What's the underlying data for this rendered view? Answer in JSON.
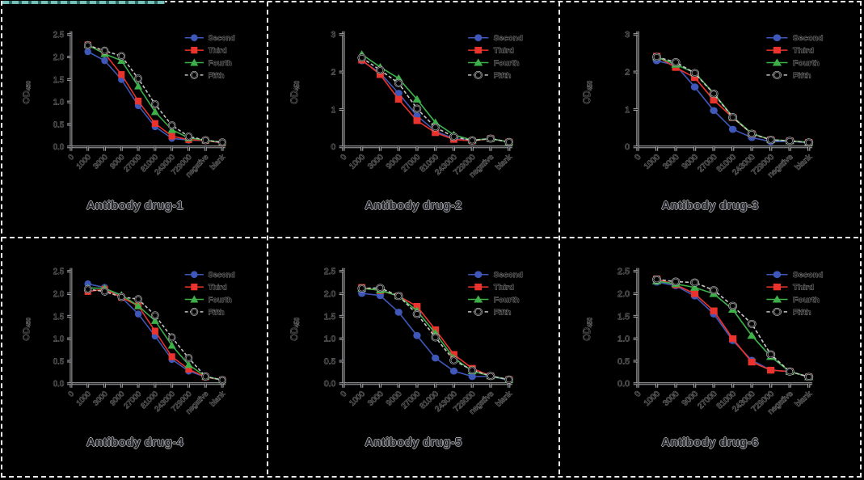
{
  "palette": {
    "background": "#000000",
    "border_dash": "#e9e9e9",
    "teal_highlight": "#74bfb7",
    "axis_core": "#191b20",
    "axis_halo": "#b3b3b3"
  },
  "series_defs": [
    {
      "name": "Second",
      "marker": "circle",
      "color": "#3e57b8",
      "line": "solid"
    },
    {
      "name": "Third",
      "marker": "square",
      "color": "#ea332c",
      "line": "solid"
    },
    {
      "name": "Fourth",
      "marker": "triangle",
      "color": "#3db04a",
      "line": "solid"
    },
    {
      "name": "Fifth",
      "marker": "circle-open",
      "color": "#c4c4c4",
      "line": "dashed"
    }
  ],
  "chart_data": [
    {
      "type": "line",
      "title": "Antibody drug-1",
      "ylabel": "OD",
      "ylabel_sub": "450",
      "ylim": [
        0,
        2.5
      ],
      "yticks": [
        "0.0",
        "0.5",
        "1.0",
        "1.5",
        "2.0",
        "2.5"
      ],
      "x_tick_labels": [
        "0",
        "1000",
        "3000",
        "9000",
        "27000",
        "81000",
        "243000",
        "729000",
        "negative",
        "blank"
      ],
      "categories": [
        "1000",
        "3000",
        "9000",
        "27000",
        "81000",
        "243000",
        "729000",
        "negative",
        "blank"
      ],
      "legend_position": "top-right",
      "grid": false,
      "series": [
        {
          "name": "Second",
          "values": [
            2.12,
            1.92,
            1.5,
            0.92,
            0.45,
            0.19,
            0.15,
            0.14,
            0.09
          ]
        },
        {
          "name": "Third",
          "values": [
            2.27,
            2.08,
            1.61,
            1.02,
            0.52,
            0.24,
            0.16,
            0.14,
            0.09
          ]
        },
        {
          "name": "Fourth",
          "values": [
            2.27,
            2.07,
            1.92,
            1.35,
            0.78,
            0.38,
            0.2,
            0.15,
            0.1
          ]
        },
        {
          "name": "Fifth",
          "values": [
            2.26,
            2.14,
            2.02,
            1.52,
            0.95,
            0.48,
            0.23,
            0.15,
            0.1
          ]
        }
      ]
    },
    {
      "type": "line",
      "title": "Antibody drug-2",
      "ylabel": "OD",
      "ylabel_sub": "450",
      "ylim": [
        0,
        3
      ],
      "yticks": [
        "0",
        "1",
        "2",
        "3"
      ],
      "x_tick_labels": [
        "0",
        "1000",
        "3000",
        "9000",
        "27000",
        "81000",
        "243000",
        "729000",
        "negative",
        "blank"
      ],
      "categories": [
        "1000",
        "3000",
        "9000",
        "27000",
        "81000",
        "243000",
        "729000",
        "negative",
        "blank"
      ],
      "legend_position": "top-right",
      "grid": false,
      "series": [
        {
          "name": "Second",
          "values": [
            2.3,
            1.97,
            1.43,
            0.83,
            0.42,
            0.22,
            0.17,
            0.22,
            0.13
          ]
        },
        {
          "name": "Third",
          "values": [
            2.32,
            1.93,
            1.27,
            0.7,
            0.38,
            0.2,
            0.16,
            0.22,
            0.13
          ]
        },
        {
          "name": "Fourth",
          "values": [
            2.47,
            2.13,
            1.83,
            1.27,
            0.65,
            0.32,
            0.18,
            0.22,
            0.13
          ]
        },
        {
          "name": "Fifth",
          "values": [
            2.38,
            2.05,
            1.7,
            1.02,
            0.52,
            0.27,
            0.17,
            0.22,
            0.13
          ]
        }
      ]
    },
    {
      "type": "line",
      "title": "Antibody drug-3",
      "ylabel": "OD",
      "ylabel_sub": "450",
      "ylim": [
        0,
        3
      ],
      "yticks": [
        "0",
        "1",
        "2",
        "3"
      ],
      "x_tick_labels": [
        "0",
        "1000",
        "3000",
        "9000",
        "27000",
        "81000",
        "243000",
        "729000",
        "negative",
        "blank"
      ],
      "categories": [
        "1000",
        "3000",
        "9000",
        "27000",
        "81000",
        "243000",
        "729000",
        "negative",
        "blank"
      ],
      "legend_position": "top-right",
      "grid": false,
      "series": [
        {
          "name": "Second",
          "values": [
            2.3,
            2.18,
            1.6,
            0.97,
            0.47,
            0.25,
            0.14,
            0.15,
            0.11
          ]
        },
        {
          "name": "Third",
          "values": [
            2.42,
            2.12,
            1.85,
            1.25,
            0.78,
            0.35,
            0.19,
            0.16,
            0.12
          ]
        },
        {
          "name": "Fourth",
          "values": [
            2.4,
            2.2,
            1.98,
            1.43,
            0.8,
            0.36,
            0.19,
            0.16,
            0.12
          ]
        },
        {
          "name": "Fifth",
          "values": [
            2.4,
            2.26,
            1.97,
            1.42,
            0.79,
            0.35,
            0.19,
            0.16,
            0.12
          ]
        }
      ]
    },
    {
      "type": "line",
      "title": "Antibody drug-4",
      "ylabel": "OD",
      "ylabel_sub": "450",
      "ylim": [
        0,
        2.5
      ],
      "yticks": [
        "0.0",
        "0.5",
        "1.0",
        "1.5",
        "2.0",
        "2.5"
      ],
      "x_tick_labels": [
        "0",
        "1000",
        "3000",
        "9000",
        "27000",
        "81000",
        "243000",
        "729000",
        "negative",
        "blank"
      ],
      "categories": [
        "1000",
        "3000",
        "9000",
        "27000",
        "81000",
        "243000",
        "729000",
        "negative",
        "blank"
      ],
      "legend_position": "top-right",
      "grid": false,
      "series": [
        {
          "name": "Second",
          "values": [
            2.22,
            2.14,
            1.92,
            1.55,
            1.06,
            0.54,
            0.28,
            0.15,
            0.08
          ]
        },
        {
          "name": "Third",
          "values": [
            2.05,
            2.1,
            1.92,
            1.73,
            1.17,
            0.6,
            0.32,
            0.15,
            0.08
          ]
        },
        {
          "name": "Fourth",
          "values": [
            2.13,
            2.12,
            1.97,
            1.73,
            1.4,
            0.85,
            0.42,
            0.16,
            0.08
          ]
        },
        {
          "name": "Fifth",
          "values": [
            2.1,
            2.05,
            1.93,
            1.88,
            1.52,
            1.03,
            0.57,
            0.16,
            0.08
          ]
        }
      ]
    },
    {
      "type": "line",
      "title": "Antibody drug-5",
      "ylabel": "OD",
      "ylabel_sub": "450",
      "ylim": [
        0,
        2.5
      ],
      "yticks": [
        "0.0",
        "0.5",
        "1.0",
        "1.5",
        "2.0",
        "2.5"
      ],
      "x_tick_labels": [
        "0",
        "1000",
        "3000",
        "9000",
        "27000",
        "81000",
        "243000",
        "729000",
        "negative",
        "blank"
      ],
      "categories": [
        "1000",
        "3000",
        "9000",
        "27000",
        "81000",
        "243000",
        "729000",
        "negative",
        "blank"
      ],
      "legend_position": "top-right",
      "grid": false,
      "series": [
        {
          "name": "Second",
          "values": [
            2.01,
            1.96,
            1.59,
            1.07,
            0.57,
            0.28,
            0.16,
            0.16,
            0.08
          ]
        },
        {
          "name": "Third",
          "values": [
            2.14,
            2.07,
            1.95,
            1.72,
            1.2,
            0.65,
            0.34,
            0.17,
            0.09
          ]
        },
        {
          "name": "Fourth",
          "values": [
            2.12,
            2.08,
            1.95,
            1.62,
            1.12,
            0.57,
            0.28,
            0.17,
            0.09
          ]
        },
        {
          "name": "Fifth",
          "values": [
            2.12,
            2.13,
            1.95,
            1.55,
            1.03,
            0.52,
            0.3,
            0.17,
            0.09
          ]
        }
      ]
    },
    {
      "type": "line",
      "title": "Antibody drug-6",
      "ylabel": "OD",
      "ylabel_sub": "450",
      "ylim": [
        0,
        2.5
      ],
      "yticks": [
        "0.0",
        "0.5",
        "1.0",
        "1.5",
        "2.0",
        "2.5"
      ],
      "x_tick_labels": [
        "0",
        "1000",
        "3000",
        "9000",
        "27000",
        "81000",
        "243000",
        "729000",
        "negative",
        "blank"
      ],
      "categories": [
        "1000",
        "3000",
        "9000",
        "27000",
        "81000",
        "243000",
        "729000",
        "negative",
        "blank"
      ],
      "legend_position": "top-right",
      "grid": false,
      "series": [
        {
          "name": "Second",
          "values": [
            2.26,
            2.18,
            1.95,
            1.55,
            0.96,
            0.52,
            0.3,
            0.27,
            0.15
          ]
        },
        {
          "name": "Third",
          "values": [
            2.33,
            2.2,
            2.0,
            1.62,
            1.0,
            0.48,
            0.3,
            0.27,
            0.15
          ]
        },
        {
          "name": "Fourth",
          "values": [
            2.28,
            2.22,
            2.14,
            2.0,
            1.65,
            1.07,
            0.6,
            0.27,
            0.15
          ]
        },
        {
          "name": "Fifth",
          "values": [
            2.32,
            2.27,
            2.25,
            2.08,
            1.73,
            1.33,
            0.65,
            0.27,
            0.15
          ]
        }
      ]
    }
  ]
}
